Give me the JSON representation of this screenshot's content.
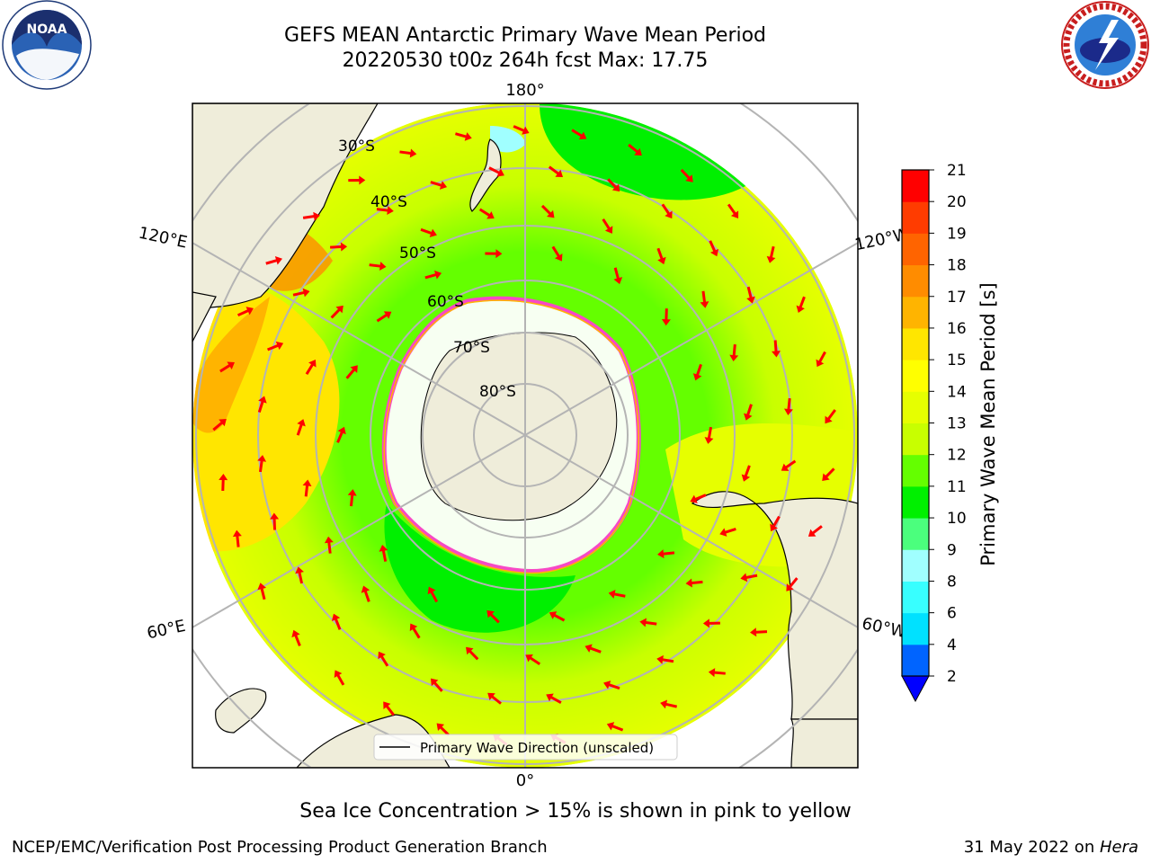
{
  "title": {
    "line1": "GEFS MEAN Antarctic Primary Wave Mean Period",
    "line2": "20220530 t00z 264h fcst   Max: 17.75"
  },
  "logos": {
    "left": {
      "icon": "noaa-logo",
      "text": "NOAA",
      "ring_text": "NATIONAL OCEANIC AND ATMOSPHERIC ADMINISTRATION · U.S. DEPARTMENT OF COMMERCE"
    },
    "right": {
      "icon": "nws-logo",
      "ring_text": "NATIONAL WEATHER SERVICE"
    }
  },
  "map": {
    "projection": "south-polar-stereographic",
    "longitude_labels": [
      "180°",
      "120°E",
      "120°W",
      "60°E",
      "60°W",
      "0°"
    ],
    "latitude_labels": [
      "30°S",
      "40°S",
      "50°S",
      "60°S",
      "70°S",
      "80°S"
    ],
    "legend_label": "Primary Wave Direction (unscaled)",
    "colors": {
      "land": "#efedda",
      "ice": "#ffffff",
      "arrow": "#ff0000",
      "grid": "#b4b4b4"
    }
  },
  "colorbar": {
    "label": "Primary Wave Mean Period [s]",
    "ticks": [
      "2",
      "4",
      "6",
      "8",
      "9",
      "10",
      "11",
      "12",
      "13",
      "14",
      "15",
      "16",
      "17",
      "18",
      "19",
      "20",
      "21"
    ],
    "colors": [
      "#0064ff",
      "#00e1ff",
      "#38ffff",
      "#a0ffff",
      "#4bff7d",
      "#00f000",
      "#64ff00",
      "#c8ff00",
      "#e6ff00",
      "#ffff00",
      "#ffe600",
      "#ffb400",
      "#ff8c00",
      "#ff6400",
      "#ff3c00",
      "#ff0000"
    ],
    "extend_min_color": "#0000ff"
  },
  "subtitle": "Sea Ice Concentration > 15% is shown in pink to yellow",
  "footer": {
    "left": "NCEP/EMC/Verification Post Processing Product Generation Branch",
    "date": "31 May 2022 on ",
    "machine": "Hera"
  }
}
